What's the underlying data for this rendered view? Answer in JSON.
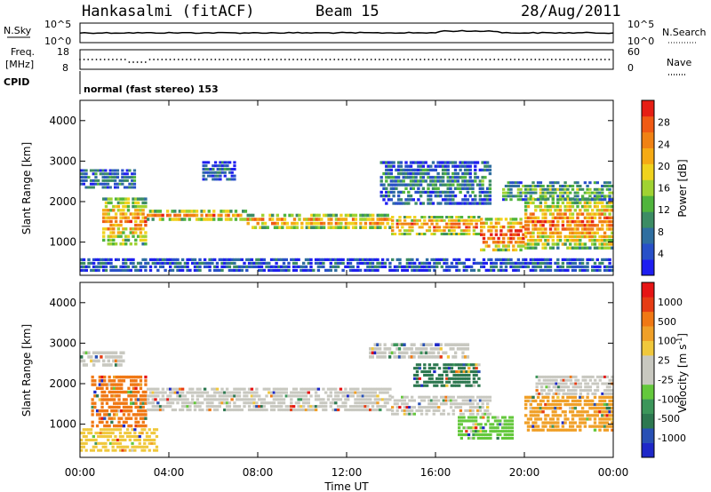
{
  "header": {
    "station": "Hankasalmi (fitACF)",
    "beam": "Beam 15",
    "date": "28/Aug/2011"
  },
  "top_panels": {
    "nsky_label": "N.Sky",
    "nsearch_label": "N.Search",
    "nsky_top": "10^5",
    "nsky_bottom": "10^0",
    "nsearch_top": "10^5",
    "nsearch_bottom": "10^0",
    "freq_label_1": "Freq.",
    "freq_label_2": "[MHz]",
    "freq_top": "18",
    "freq_bottom": "8",
    "nave_label": "Nave",
    "nave_top": "60",
    "nave_bottom": "0",
    "cpid_label": "CPID",
    "cpid_text": "normal (fast stereo) 153"
  },
  "chart_data": [
    {
      "type": "heatmap",
      "quantity": "Power",
      "ylabel": "Slant Range [km]",
      "ylim": [
        180,
        4500
      ],
      "yticks": [
        "1000",
        "2000",
        "3000",
        "4000"
      ],
      "xlim_hours": [
        0,
        24
      ],
      "colorbar_label": "Power [dB]",
      "colorbar_ticks": [
        "4",
        "8",
        "12",
        "16",
        "20",
        "24",
        "28"
      ],
      "colorbar_colors": [
        "#1e1ef0",
        "#2850c8",
        "#2f6ea0",
        "#3c8c64",
        "#50b43c",
        "#a0d232",
        "#f0d21e",
        "#f5aa14",
        "#f08214",
        "#f05a14",
        "#e61e14"
      ],
      "bands": [
        {
          "t0": 1.0,
          "t1": 3.0,
          "r0": 900,
          "r1": 2100,
          "level": 0.8
        },
        {
          "t0": 3.0,
          "t1": 7.5,
          "r0": 1500,
          "r1": 1800,
          "level": 0.75
        },
        {
          "t0": 7.5,
          "t1": 14.0,
          "r0": 1300,
          "r1": 1700,
          "level": 0.8
        },
        {
          "t0": 14.0,
          "t1": 18.0,
          "r0": 1150,
          "r1": 1650,
          "level": 0.85
        },
        {
          "t0": 18.0,
          "t1": 20.0,
          "r0": 750,
          "r1": 1600,
          "level": 0.95
        },
        {
          "t0": 20.0,
          "t1": 24.0,
          "r0": 800,
          "r1": 2100,
          "level": 0.85
        },
        {
          "t0": 0.0,
          "t1": 2.5,
          "r0": 2300,
          "r1": 2800,
          "level": 0.3
        },
        {
          "t0": 5.5,
          "t1": 7.0,
          "r0": 2500,
          "r1": 3000,
          "level": 0.25
        },
        {
          "t0": 13.5,
          "t1": 18.5,
          "r0": 1900,
          "r1": 3000,
          "level": 0.3
        },
        {
          "t0": 19.0,
          "t1": 24.0,
          "r0": 2000,
          "r1": 2500,
          "level": 0.45
        },
        {
          "t0": 0.0,
          "t1": 24.0,
          "r0": 250,
          "r1": 600,
          "level": 0.2
        }
      ]
    },
    {
      "type": "heatmap",
      "quantity": "Velocity",
      "ylabel": "Slant Range [km]",
      "ylim": [
        180,
        4500
      ],
      "yticks": [
        "1000",
        "2000",
        "3000",
        "4000"
      ],
      "xlim_hours": [
        0,
        24
      ],
      "xticks": [
        "00:00",
        "04:00",
        "08:00",
        "12:00",
        "16:00",
        "20:00",
        "00:00"
      ],
      "xlabel": "Time UT",
      "colorbar_label": "Velocity [m s",
      "colorbar_label_sup": "-1",
      "colorbar_label_end": "]",
      "colorbar_ticks": [
        "1000",
        "500",
        "100",
        "25",
        "-25",
        "-100",
        "-500",
        "-1000"
      ],
      "colorbar_colors": [
        "#1e28c8",
        "#2850b4",
        "#2d7850",
        "#3c965a",
        "#64c83c",
        "#c8c8c0",
        "#c8c8c0",
        "#f0c83c",
        "#f0a028",
        "#f07814",
        "#e63c14",
        "#e61414"
      ],
      "bands": [
        {
          "t0": 0.5,
          "t1": 3.0,
          "r0": 900,
          "r1": 2200,
          "color": "#f07814"
        },
        {
          "t0": 0.0,
          "t1": 3.5,
          "r0": 300,
          "r1": 900,
          "color": "#f0c83c"
        },
        {
          "t0": 3.0,
          "t1": 14.0,
          "r0": 1300,
          "r1": 1900,
          "color": "#c8c8c0"
        },
        {
          "t0": 14.0,
          "t1": 18.5,
          "r0": 1200,
          "r1": 1700,
          "color": "#c8c8c0"
        },
        {
          "t0": 0.0,
          "t1": 2.0,
          "r0": 2400,
          "r1": 2800,
          "color": "#c8c8c0"
        },
        {
          "t0": 13.0,
          "t1": 17.5,
          "r0": 2600,
          "r1": 3000,
          "color": "#c8c8c0"
        },
        {
          "t0": 15.0,
          "t1": 18.0,
          "r0": 1900,
          "r1": 2500,
          "color": "#2d7850"
        },
        {
          "t0": 17.0,
          "t1": 19.5,
          "r0": 600,
          "r1": 1200,
          "color": "#64c83c"
        },
        {
          "t0": 20.0,
          "t1": 24.0,
          "r0": 800,
          "r1": 1700,
          "color": "#f0a028"
        },
        {
          "t0": 20.5,
          "t1": 24.0,
          "r0": 1700,
          "r1": 2200,
          "color": "#c8c8c0"
        }
      ]
    }
  ]
}
